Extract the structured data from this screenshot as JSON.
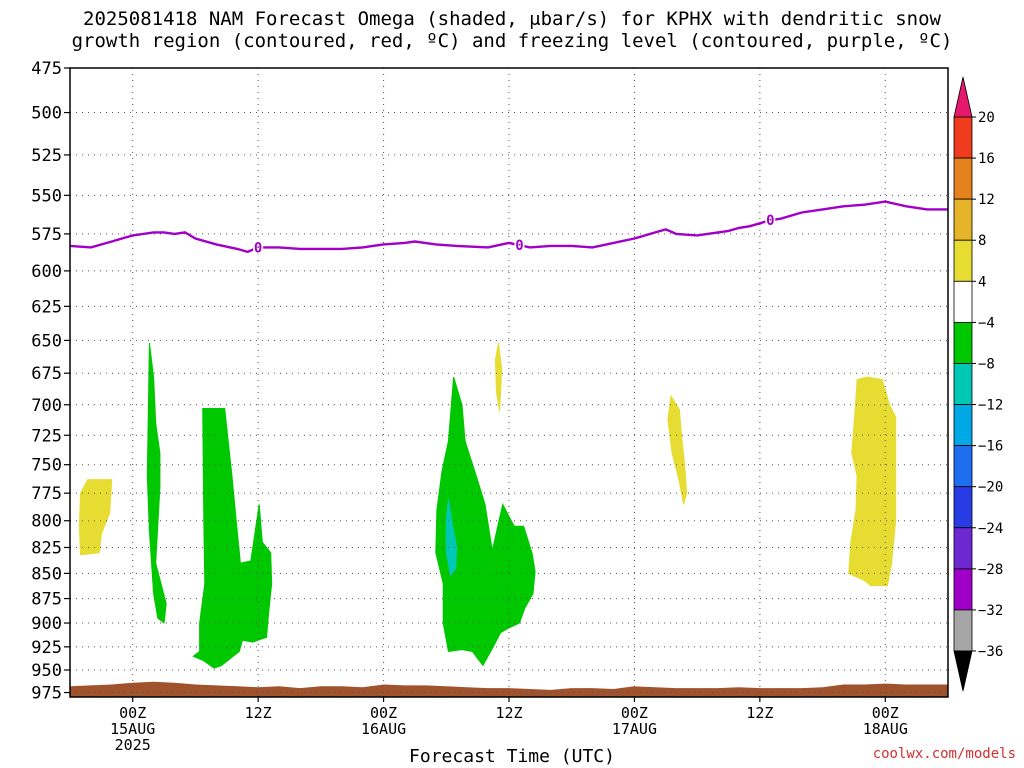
{
  "title_line1": "2025081418 NAM Forecast Omega (shaded, μbar/s) for KPHX with dendritic snow",
  "title_line2": "growth region (contoured, red, ºC) and freezing level (contoured, purple, ºC)",
  "credit": "coolwx.com/models",
  "chart_data": {
    "type": "heatmap",
    "xlabel": "Forecast Time (UTC)",
    "x_ticks": [
      {
        "label": "00Z",
        "sub": "15AUG",
        "sub2": "2025",
        "hour": 6
      },
      {
        "label": "12Z",
        "sub": "",
        "sub2": "",
        "hour": 18
      },
      {
        "label": "00Z",
        "sub": "16AUG",
        "sub2": "",
        "hour": 30
      },
      {
        "label": "12Z",
        "sub": "",
        "sub2": "",
        "hour": 42
      },
      {
        "label": "00Z",
        "sub": "17AUG",
        "sub2": "",
        "hour": 54
      },
      {
        "label": "12Z",
        "sub": "",
        "sub2": "",
        "hour": 66
      },
      {
        "label": "00Z",
        "sub": "18AUG",
        "sub2": "",
        "hour": 78
      }
    ],
    "xlim": [
      0,
      84
    ],
    "y_ticks": [
      475,
      500,
      525,
      550,
      575,
      600,
      625,
      650,
      675,
      700,
      725,
      750,
      775,
      800,
      825,
      850,
      875,
      900,
      925,
      950,
      975
    ],
    "ylim_top": 475,
    "ylim_bottom": 980,
    "y_scale": "log-pressure",
    "grid": true,
    "colorbar": {
      "labels": [
        "20",
        "16",
        "12",
        "8",
        "4",
        "−4",
        "−8",
        "−12",
        "−16",
        "−20",
        "−24",
        "−28",
        "−32",
        "−36"
      ],
      "bins": [
        {
          "from": -36,
          "to": -32,
          "color": "#a6a6a6"
        },
        {
          "from": -32,
          "to": -28,
          "color": "#a000c8"
        },
        {
          "from": -28,
          "to": -24,
          "color": "#6e28d2"
        },
        {
          "from": -24,
          "to": -20,
          "color": "#283ce6"
        },
        {
          "from": -20,
          "to": -16,
          "color": "#1e6ef0"
        },
        {
          "from": -16,
          "to": -12,
          "color": "#00a8e6"
        },
        {
          "from": -12,
          "to": -8,
          "color": "#00c8b4"
        },
        {
          "from": -8,
          "to": -4,
          "color": "#00c800"
        },
        {
          "from": -4,
          "to": 4,
          "color": "#ffffff"
        },
        {
          "from": 4,
          "to": 8,
          "color": "#e6dc32"
        },
        {
          "from": 8,
          "to": 12,
          "color": "#e6b428"
        },
        {
          "from": 12,
          "to": 16,
          "color": "#e6821e"
        },
        {
          "from": 16,
          "to": 20,
          "color": "#f03c1e"
        }
      ],
      "over_color": "#e6186e",
      "under_color": "#000000"
    },
    "freezing_level": {
      "color": "#a000c8",
      "contour_label": "0",
      "points": [
        [
          0,
          583
        ],
        [
          2,
          584
        ],
        [
          4,
          580
        ],
        [
          6,
          576
        ],
        [
          8,
          574
        ],
        [
          9,
          574
        ],
        [
          10,
          575
        ],
        [
          11,
          574
        ],
        [
          12,
          578
        ],
        [
          14,
          582
        ],
        [
          16,
          585
        ],
        [
          17,
          587
        ],
        [
          18,
          584
        ],
        [
          20,
          584
        ],
        [
          22,
          585
        ],
        [
          26,
          585
        ],
        [
          28,
          584
        ],
        [
          30,
          582
        ],
        [
          32,
          581
        ],
        [
          33,
          580
        ],
        [
          35,
          582
        ],
        [
          37,
          583
        ],
        [
          40,
          584
        ],
        [
          42,
          581
        ],
        [
          44,
          584
        ],
        [
          46,
          583
        ],
        [
          48,
          583
        ],
        [
          50,
          584
        ],
        [
          52,
          581
        ],
        [
          54,
          578
        ],
        [
          56,
          574
        ],
        [
          57,
          572
        ],
        [
          58,
          575
        ],
        [
          60,
          576
        ],
        [
          62,
          574
        ],
        [
          63,
          573
        ],
        [
          64,
          571
        ],
        [
          65,
          570
        ],
        [
          66,
          568
        ],
        [
          67,
          566
        ],
        [
          68,
          565
        ],
        [
          70,
          561
        ],
        [
          72,
          559
        ],
        [
          74,
          557
        ],
        [
          76,
          556
        ],
        [
          78,
          554
        ],
        [
          80,
          557
        ],
        [
          82,
          559
        ],
        [
          84,
          559
        ]
      ],
      "label_hours": [
        18,
        43,
        67
      ]
    },
    "omega_regions": [
      {
        "value_bin": "4 to 8",
        "color": "#e6dc32",
        "points": [
          [
            1.0,
            775
          ],
          [
            1.7,
            763
          ],
          [
            4.0,
            763
          ],
          [
            3.8,
            793
          ],
          [
            3.0,
            812
          ],
          [
            2.8,
            830
          ],
          [
            1.0,
            832
          ],
          [
            0.9,
            805
          ]
        ]
      },
      {
        "value_bin": "-8 to -4",
        "color": "#00c800",
        "points": [
          [
            7.6,
            652
          ],
          [
            8.0,
            678
          ],
          [
            8.2,
            715
          ],
          [
            8.6,
            740
          ],
          [
            8.6,
            770
          ],
          [
            8.2,
            840
          ],
          [
            9.2,
            880
          ],
          [
            9.0,
            900
          ],
          [
            8.4,
            895
          ],
          [
            8.0,
            870
          ],
          [
            7.6,
            810
          ],
          [
            7.4,
            760
          ]
        ]
      },
      {
        "value_bin": "-8 to -4",
        "color": "#00c800",
        "points": [
          [
            12.7,
            703
          ],
          [
            14.8,
            703
          ],
          [
            15.5,
            760
          ],
          [
            15.9,
            800
          ],
          [
            16.3,
            840
          ],
          [
            17.3,
            838
          ],
          [
            18.1,
            785
          ],
          [
            18.4,
            820
          ],
          [
            19.2,
            830
          ],
          [
            19.3,
            860
          ],
          [
            19.0,
            890
          ],
          [
            18.8,
            915
          ],
          [
            18.0,
            918
          ],
          [
            17.5,
            920
          ],
          [
            16.5,
            918
          ],
          [
            16.2,
            930
          ],
          [
            14.5,
            945
          ],
          [
            13.8,
            948
          ],
          [
            12.8,
            940
          ],
          [
            11.8,
            935
          ],
          [
            12.4,
            930
          ],
          [
            12.4,
            900
          ],
          [
            12.9,
            860
          ],
          [
            12.8,
            800
          ]
        ]
      },
      {
        "value_bin": "-8 to -4",
        "color": "#00c800",
        "points": [
          [
            36.7,
            678
          ],
          [
            37.5,
            700
          ],
          [
            37.8,
            730
          ],
          [
            38.8,
            758
          ],
          [
            39.7,
            785
          ],
          [
            40.4,
            828
          ],
          [
            41.4,
            785
          ],
          [
            42.5,
            805
          ],
          [
            43.4,
            805
          ],
          [
            44.2,
            830
          ],
          [
            44.5,
            848
          ],
          [
            44.3,
            870
          ],
          [
            43.5,
            885
          ],
          [
            43.0,
            900
          ],
          [
            42.0,
            905
          ],
          [
            41.2,
            910
          ],
          [
            40.5,
            925
          ],
          [
            39.5,
            945
          ],
          [
            38.5,
            930
          ],
          [
            37.5,
            928
          ],
          [
            36.2,
            930
          ],
          [
            35.7,
            900
          ],
          [
            35.7,
            860
          ],
          [
            35.0,
            830
          ],
          [
            35.1,
            790
          ],
          [
            35.6,
            755
          ],
          [
            36.2,
            730
          ]
        ]
      },
      {
        "value_bin": "-12 to -8",
        "color": "#00c8b4",
        "points": [
          [
            36.2,
            780
          ],
          [
            36.6,
            805
          ],
          [
            37.0,
            825
          ],
          [
            36.9,
            845
          ],
          [
            36.4,
            852
          ],
          [
            36.0,
            830
          ],
          [
            36.0,
            800
          ]
        ]
      },
      {
        "value_bin": "4 to 8",
        "color": "#e6dc32",
        "points": [
          [
            41.0,
            652
          ],
          [
            41.3,
            672
          ],
          [
            41.1,
            705
          ],
          [
            40.8,
            690
          ],
          [
            40.7,
            665
          ]
        ]
      },
      {
        "value_bin": "4 to 8",
        "color": "#e6dc32",
        "points": [
          [
            57.5,
            693
          ],
          [
            58.3,
            704
          ],
          [
            58.5,
            725
          ],
          [
            58.8,
            750
          ],
          [
            59.0,
            775
          ],
          [
            58.7,
            785
          ],
          [
            58.3,
            765
          ],
          [
            57.6,
            740
          ],
          [
            57.2,
            712
          ]
        ]
      },
      {
        "value_bin": "4 to 8",
        "color": "#e6dc32",
        "points": [
          [
            75.3,
            680
          ],
          [
            76.3,
            678
          ],
          [
            77.7,
            680
          ],
          [
            78.4,
            700
          ],
          [
            79.0,
            710
          ],
          [
            79.0,
            800
          ],
          [
            78.6,
            840
          ],
          [
            78.2,
            862
          ],
          [
            76.6,
            862
          ],
          [
            76.0,
            857
          ],
          [
            74.5,
            850
          ],
          [
            74.7,
            820
          ],
          [
            75.2,
            790
          ],
          [
            75.3,
            760
          ],
          [
            74.8,
            740
          ],
          [
            75.1,
            705
          ]
        ]
      }
    ],
    "terrain": {
      "color": "#a0522d",
      "surface": [
        [
          0,
          968
        ],
        [
          2,
          967
        ],
        [
          4,
          966
        ],
        [
          6,
          964
        ],
        [
          8,
          963
        ],
        [
          10,
          964
        ],
        [
          12,
          966
        ],
        [
          14,
          967
        ],
        [
          16,
          968
        ],
        [
          18,
          969
        ],
        [
          20,
          968
        ],
        [
          22,
          970
        ],
        [
          24,
          968
        ],
        [
          26,
          968
        ],
        [
          28,
          969
        ],
        [
          30,
          966
        ],
        [
          32,
          967
        ],
        [
          34,
          967
        ],
        [
          36,
          968
        ],
        [
          38,
          969
        ],
        [
          40,
          970
        ],
        [
          42,
          970
        ],
        [
          44,
          971
        ],
        [
          46,
          972
        ],
        [
          48,
          970
        ],
        [
          50,
          970
        ],
        [
          52,
          971
        ],
        [
          54,
          968
        ],
        [
          56,
          969
        ],
        [
          58,
          970
        ],
        [
          60,
          970
        ],
        [
          62,
          970
        ],
        [
          64,
          969
        ],
        [
          66,
          970
        ],
        [
          68,
          970
        ],
        [
          70,
          970
        ],
        [
          72,
          969
        ],
        [
          74,
          966
        ],
        [
          76,
          966
        ],
        [
          78,
          965
        ],
        [
          80,
          966
        ],
        [
          82,
          966
        ],
        [
          84,
          966
        ]
      ]
    }
  }
}
